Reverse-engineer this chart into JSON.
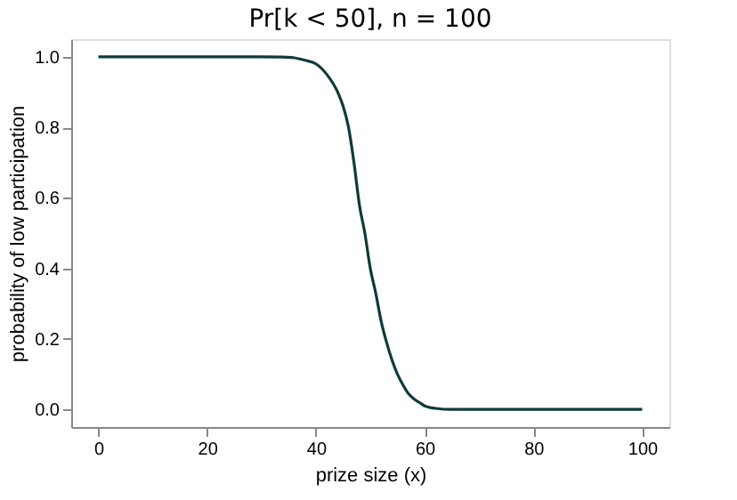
{
  "chart_data": {
    "type": "line",
    "title": "Pr[k < 50], n = 100",
    "xlabel": "prize size (x)",
    "ylabel": "probability of low participation",
    "x": [
      0,
      10,
      20,
      30,
      34,
      36,
      38,
      40,
      42,
      44,
      45,
      46,
      47,
      48,
      49,
      50,
      51,
      52,
      53,
      54,
      55,
      56,
      57,
      58,
      59,
      60,
      62,
      65,
      70,
      80,
      90,
      100
    ],
    "series": [
      {
        "color": "#113a3a",
        "values": [
          1,
          1,
          1,
          1,
          0.999,
          0.997,
          0.99,
          0.98,
          0.95,
          0.9,
          0.86,
          0.8,
          0.7,
          0.58,
          0.5,
          0.4,
          0.33,
          0.25,
          0.19,
          0.14,
          0.1,
          0.07,
          0.045,
          0.03,
          0.02,
          0.01,
          0.003,
          0,
          0,
          0,
          0,
          0
        ]
      }
    ],
    "xlim": [
      -5,
      105
    ],
    "ylim": [
      -0.05,
      1.05
    ],
    "xticks": [
      0,
      20,
      40,
      60,
      80,
      100
    ],
    "yticks": [
      {
        "value": 0,
        "label": "0.0"
      },
      0.2,
      0.4,
      0.6,
      0.8,
      {
        "value": 1,
        "label": "1.0"
      }
    ],
    "grid": false,
    "legend": false,
    "marker": "none",
    "line_style": "solid"
  }
}
